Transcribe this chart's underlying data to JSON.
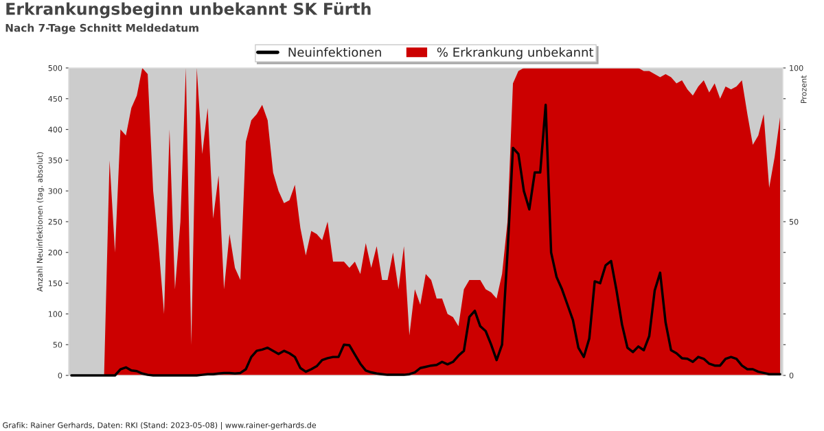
{
  "chart_data": {
    "type": "line",
    "title": "Erkrankungsbeginn unbekannt SK Fürth",
    "subtitle": "Nach 7-Tage Schnitt Meldedatum",
    "ylabel": "Anzahl Neuinfektionen (tag. absolut)",
    "y2label": "Prozent",
    "categories": [
      null,
      null,
      null,
      null,
      null,
      null,
      null,
      null,
      null,
      null,
      null,
      null,
      null,
      null,
      null,
      null,
      null,
      null,
      null,
      null,
      null,
      null,
      null,
      null,
      null,
      null,
      null,
      null,
      null,
      null,
      null,
      null,
      null,
      null,
      null,
      null,
      null,
      null,
      null,
      null,
      null,
      null,
      null,
      null,
      null,
      null,
      null,
      null,
      null,
      null,
      null,
      null,
      null,
      null,
      null,
      null,
      null,
      null,
      null,
      null,
      null,
      null,
      null,
      null,
      null,
      null,
      null,
      null,
      null,
      null,
      null,
      null,
      null,
      null,
      null,
      null,
      null,
      null,
      null,
      null,
      null,
      null,
      null,
      null,
      null,
      null,
      null,
      null,
      null,
      null,
      null,
      null,
      null,
      null,
      null,
      null,
      null,
      null,
      null,
      null,
      null,
      null,
      null,
      null,
      null,
      null,
      null,
      null,
      null,
      null,
      null,
      null,
      null,
      null,
      null,
      null,
      null,
      null,
      null,
      null,
      null,
      null,
      null,
      null,
      null,
      null,
      null,
      null,
      null,
      null,
      null
    ],
    "series": [
      {
        "name": "% Erkrankung unbekannt",
        "type": "area",
        "axis": "y2",
        "color": "#cc0000",
        "values": [
          0,
          0,
          0,
          0,
          0,
          0,
          0,
          70,
          40,
          80,
          78,
          87,
          91,
          100,
          98,
          60,
          42,
          20,
          80,
          28,
          50,
          100,
          10,
          100,
          72,
          87,
          51,
          65,
          28,
          46,
          35,
          31,
          76,
          83,
          85,
          88,
          83,
          66,
          60,
          56,
          57,
          62,
          48,
          39,
          47,
          46,
          44,
          50,
          37,
          37,
          37,
          35,
          37,
          33,
          43,
          35,
          42,
          31,
          31,
          40,
          28,
          42,
          13,
          28,
          23,
          33,
          31,
          25,
          25,
          20,
          19,
          16,
          28,
          31,
          31,
          31,
          28,
          27,
          25,
          33,
          50,
          95,
          99,
          100,
          100,
          100,
          100,
          100,
          100,
          100,
          100,
          100,
          100,
          100,
          100,
          100,
          100,
          100,
          100,
          100,
          100,
          100,
          100,
          100,
          100,
          99,
          99,
          98,
          97,
          98,
          97,
          95,
          96,
          93,
          91,
          94,
          96,
          92,
          95,
          90,
          94,
          93,
          94,
          96,
          85,
          75,
          78,
          85,
          61,
          71,
          84
        ]
      },
      {
        "name": "Neuinfektionen",
        "axis": "y",
        "color": "#000000",
        "values": [
          0,
          0,
          0,
          0,
          0,
          0,
          0,
          0,
          0,
          10,
          13,
          8,
          7,
          3,
          1,
          0,
          0,
          0,
          0,
          0,
          0,
          0,
          0,
          0,
          1,
          2,
          2,
          3,
          4,
          4,
          3,
          4,
          10,
          30,
          40,
          42,
          45,
          40,
          35,
          40,
          36,
          30,
          12,
          6,
          10,
          15,
          25,
          28,
          30,
          30,
          50,
          49,
          34,
          19,
          8,
          5,
          3,
          2,
          1,
          1,
          1,
          1,
          2,
          5,
          12,
          14,
          16,
          17,
          22,
          18,
          22,
          32,
          40,
          95,
          105,
          80,
          72,
          50,
          25,
          50,
          200,
          370,
          360,
          300,
          270,
          330,
          330,
          440,
          200,
          160,
          140,
          115,
          90,
          45,
          30,
          60,
          153,
          150,
          179,
          186,
          138,
          83,
          45,
          38,
          47,
          41,
          64,
          138,
          167,
          86,
          41,
          36,
          28,
          27,
          22,
          30,
          27,
          19,
          16,
          16,
          27,
          30,
          27,
          16,
          10,
          10,
          6,
          4,
          2,
          2,
          2
        ]
      }
    ],
    "ylim": [
      0,
      500
    ],
    "yticks": [
      0,
      50,
      100,
      150,
      200,
      250,
      300,
      350,
      400,
      450,
      500
    ],
    "y2lim": [
      0,
      100
    ],
    "y2ticks": [
      0,
      {
        "value": 10,
        "label": null
      },
      {
        "value": 20,
        "label": null
      },
      {
        "value": 30,
        "label": null
      },
      {
        "value": 40,
        "label": null
      },
      50,
      {
        "value": 60,
        "label": null
      },
      {
        "value": 70,
        "label": null
      },
      {
        "value": 80,
        "label": null
      },
      {
        "value": 90,
        "label": null
      },
      100
    ],
    "legend": "top",
    "grid": false,
    "annotations": [
      "Grafik: Rainer Gerhards, Daten: RKI (Stand: 2023-05-08) | www.rainer-gerhards.de"
    ]
  }
}
